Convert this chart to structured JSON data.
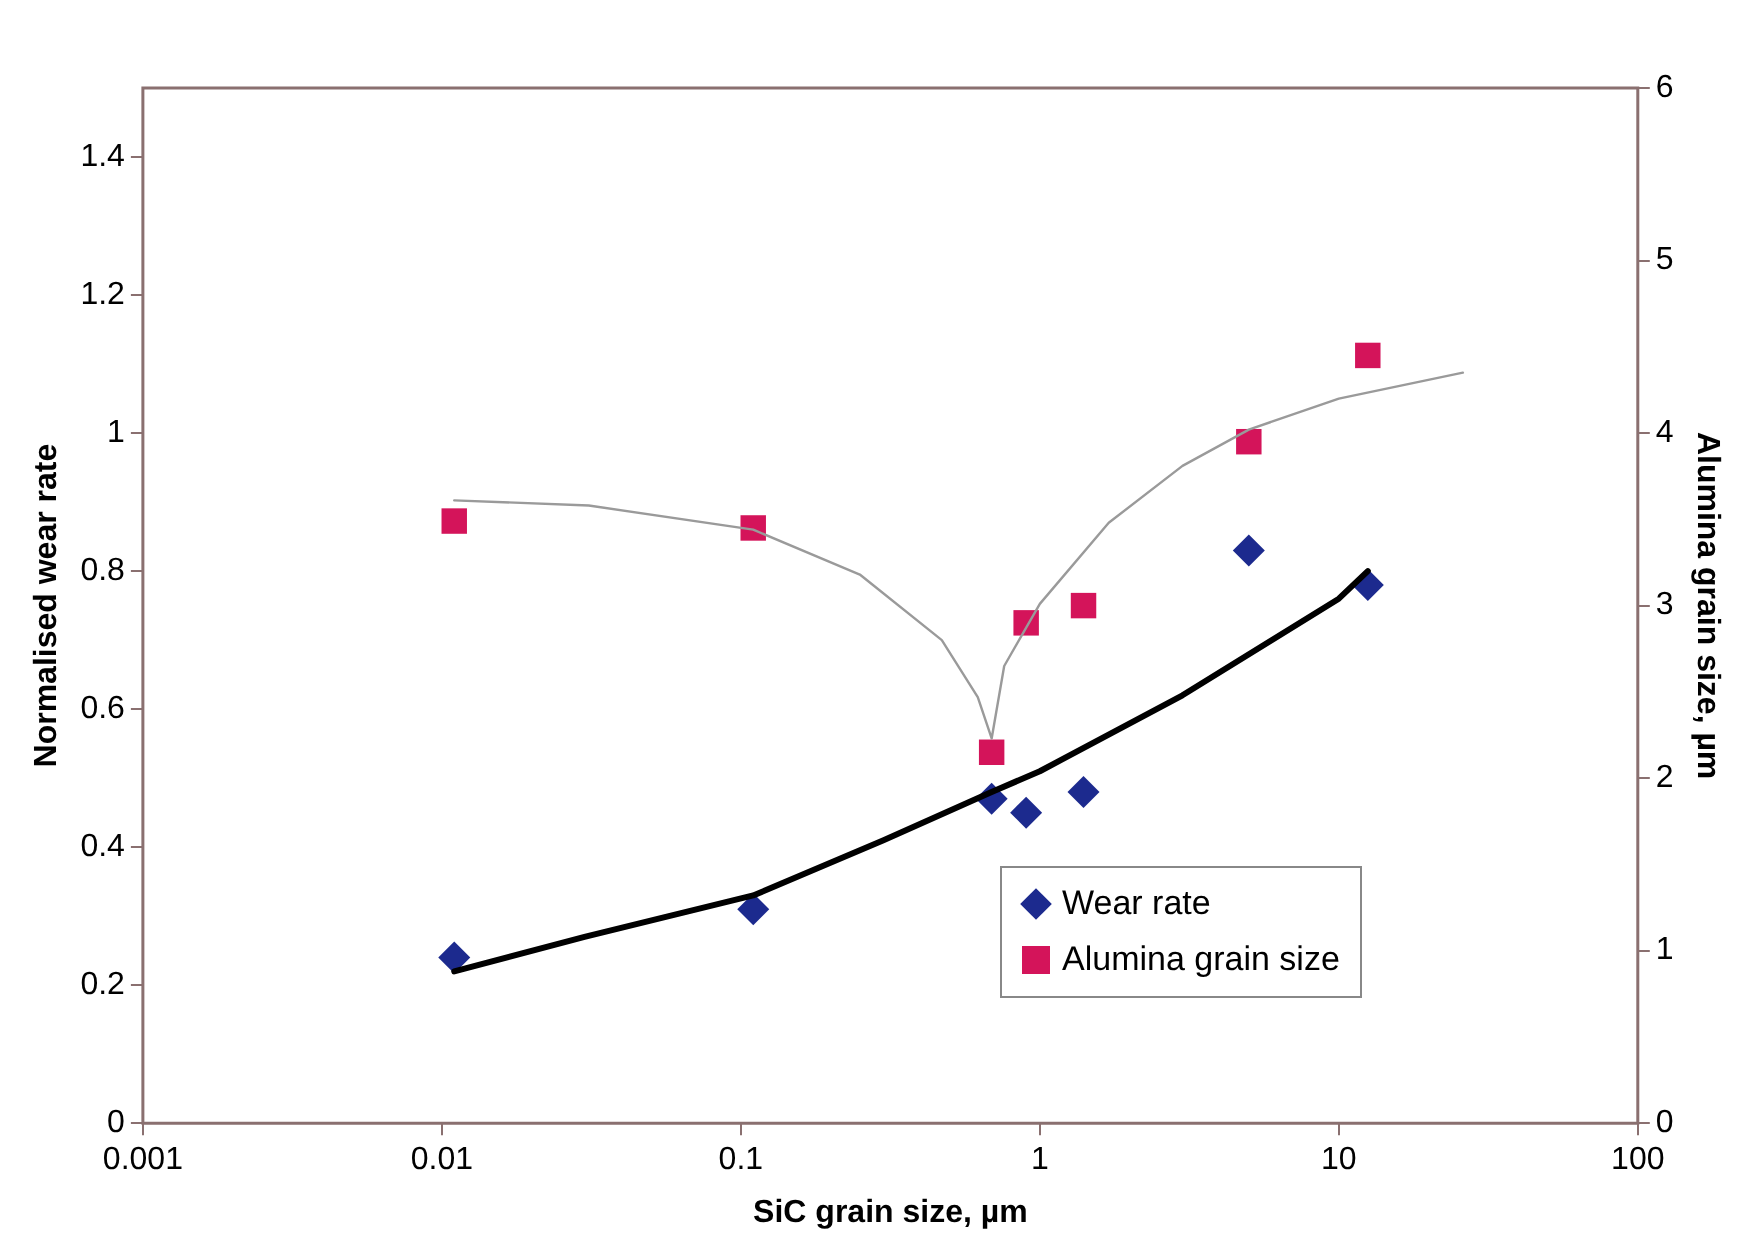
{
  "chart_data": {
    "type": "scatter",
    "xlabel": "SiC grain size, µm",
    "ylabel": "Normalised wear rate",
    "y2label": "Alumina grain size, µm",
    "log": "x",
    "xlim": [
      0.001,
      100
    ],
    "xticks": [
      0.001,
      0.01,
      0.1,
      1,
      10,
      100
    ],
    "ylim": [
      0,
      1.5
    ],
    "yticks": [
      0,
      0.2,
      0.4,
      0.6,
      0.8,
      1,
      1.2,
      1.4
    ],
    "y2lim": [
      0,
      6
    ],
    "y2ticks": [
      0,
      1,
      2,
      3,
      4,
      5,
      6
    ],
    "grid": false,
    "legend": "bottom right",
    "series": [
      {
        "name": "Wear rate",
        "type": "scatter",
        "marker": "diamond",
        "color": "#1c2a8e",
        "x": [
          0.011,
          0.11,
          0.69,
          0.9,
          1.4,
          5,
          12.5
        ],
        "values": [
          0.24,
          0.31,
          0.47,
          0.45,
          0.48,
          0.83,
          0.78
        ]
      },
      {
        "name": "Alumina grain size",
        "type": "scatter",
        "marker": "square",
        "color": "#d4145a",
        "axis": "y2",
        "x": [
          0.011,
          0.11,
          0.69,
          0.9,
          1.4,
          5,
          12.5
        ],
        "values": [
          3.49,
          3.45,
          2.15,
          2.9,
          3.0,
          3.95,
          4.45
        ]
      },
      {
        "type": "line",
        "marker": "none",
        "color": "#000000",
        "x": [
          0.011,
          0.03,
          0.11,
          0.3,
          0.69,
          1,
          3,
          10,
          12.5
        ],
        "values": [
          0.22,
          0.27,
          0.33,
          0.41,
          0.48,
          0.51,
          0.62,
          0.76,
          0.8
        ]
      },
      {
        "type": "line",
        "marker": "none",
        "color": "#9a9a9a",
        "axis": "y2",
        "x": [
          0.011,
          0.031,
          0.11,
          0.25,
          0.47,
          0.62,
          0.69,
          0.76,
          1,
          1.7,
          3,
          5,
          10,
          26
        ],
        "values": [
          3.61,
          3.58,
          3.44,
          3.18,
          2.8,
          2.47,
          2.23,
          2.65,
          3.01,
          3.48,
          3.81,
          4.02,
          4.2,
          4.35
        ]
      }
    ]
  }
}
